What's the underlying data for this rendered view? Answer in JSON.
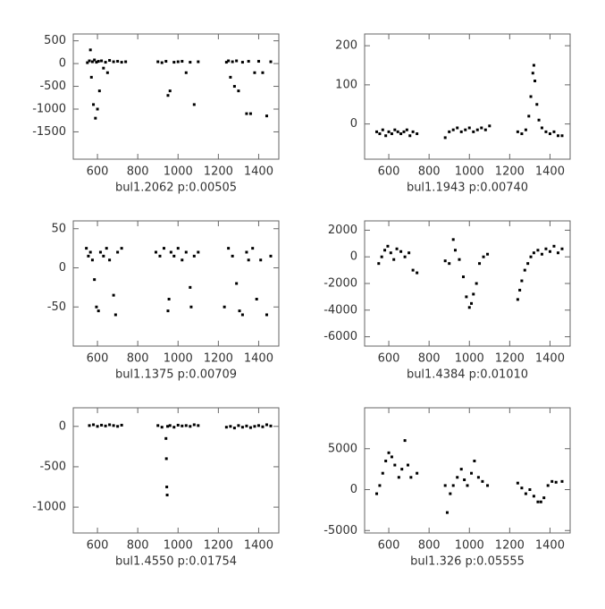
{
  "chart_data": [
    {
      "type": "scatter",
      "xlabel": "bul1.2062 p:0.00505",
      "color": "#000000",
      "xlim": [
        480,
        1500
      ],
      "ylim": [
        -2100,
        650
      ],
      "xticks": [
        600,
        800,
        1000,
        1200,
        1400
      ],
      "yticks": [
        500,
        0,
        -500,
        -1000,
        -1500
      ],
      "x": [
        550,
        560,
        565,
        570,
        575,
        580,
        585,
        590,
        595,
        600,
        605,
        610,
        620,
        630,
        640,
        650,
        660,
        680,
        700,
        720,
        740,
        900,
        920,
        940,
        950,
        960,
        980,
        1000,
        1020,
        1040,
        1060,
        1080,
        1100,
        1240,
        1250,
        1260,
        1270,
        1280,
        1290,
        1300,
        1320,
        1340,
        1350,
        1360,
        1380,
        1400,
        1420,
        1440,
        1460
      ],
      "y": [
        20,
        60,
        300,
        -300,
        40,
        -900,
        80,
        -1200,
        30,
        -1000,
        50,
        -600,
        60,
        -100,
        30,
        -200,
        70,
        40,
        50,
        30,
        40,
        40,
        20,
        50,
        -700,
        -600,
        30,
        40,
        50,
        -200,
        30,
        -900,
        40,
        30,
        60,
        -300,
        40,
        -500,
        60,
        -600,
        30,
        -1100,
        50,
        -1100,
        -200,
        50,
        -200,
        -1150,
        40
      ]
    },
    {
      "type": "scatter",
      "xlabel": "bul1.1943 p:0.00740",
      "color": "#000000",
      "xlim": [
        480,
        1500
      ],
      "ylim": [
        -90,
        230
      ],
      "xticks": [
        600,
        800,
        1000,
        1200,
        1400
      ],
      "yticks": [
        200,
        100,
        0
      ],
      "x": [
        540,
        555,
        570,
        585,
        600,
        615,
        630,
        645,
        660,
        675,
        690,
        705,
        720,
        740,
        880,
        900,
        920,
        940,
        960,
        980,
        1000,
        1020,
        1040,
        1060,
        1080,
        1100,
        1240,
        1260,
        1280,
        1295,
        1305,
        1315,
        1320,
        1325,
        1335,
        1345,
        1360,
        1380,
        1400,
        1420,
        1440,
        1460
      ],
      "y": [
        -20,
        -25,
        -15,
        -30,
        -20,
        -25,
        -15,
        -20,
        -25,
        -20,
        -15,
        -30,
        -20,
        -25,
        -35,
        -20,
        -15,
        -10,
        -20,
        -15,
        -10,
        -20,
        -15,
        -10,
        -15,
        -5,
        -20,
        -25,
        -15,
        20,
        70,
        130,
        150,
        110,
        50,
        10,
        -10,
        -20,
        -25,
        -20,
        -30,
        -30
      ]
    },
    {
      "type": "scatter",
      "xlabel": "bul1.1375 p:0.00709",
      "color": "#000000",
      "xlim": [
        480,
        1500
      ],
      "ylim": [
        -100,
        60
      ],
      "xticks": [
        600,
        800,
        1000,
        1200,
        1400
      ],
      "yticks": [
        50,
        0,
        -50
      ],
      "x": [
        545,
        555,
        565,
        575,
        585,
        595,
        605,
        615,
        630,
        645,
        660,
        680,
        690,
        700,
        720,
        890,
        910,
        930,
        950,
        955,
        965,
        980,
        1000,
        1020,
        1040,
        1060,
        1065,
        1080,
        1100,
        1230,
        1250,
        1270,
        1290,
        1305,
        1320,
        1340,
        1350,
        1370,
        1390,
        1410,
        1440,
        1460
      ],
      "y": [
        25,
        15,
        20,
        10,
        -15,
        -50,
        -55,
        20,
        15,
        25,
        10,
        -35,
        -60,
        20,
        25,
        20,
        15,
        25,
        -55,
        -40,
        20,
        15,
        25,
        10,
        20,
        -25,
        -50,
        15,
        20,
        -50,
        25,
        15,
        -20,
        -55,
        -60,
        20,
        10,
        25,
        -40,
        10,
        -60,
        15
      ]
    },
    {
      "type": "scatter",
      "xlabel": "bul1.4384 p:0.01010",
      "color": "#000000",
      "xlim": [
        480,
        1500
      ],
      "ylim": [
        -6700,
        2700
      ],
      "xticks": [
        600,
        800,
        1000,
        1200,
        1400
      ],
      "yticks": [
        2000,
        0,
        -2000,
        -4000,
        -6000
      ],
      "x": [
        550,
        565,
        580,
        595,
        610,
        625,
        640,
        660,
        680,
        700,
        720,
        740,
        880,
        900,
        920,
        930,
        950,
        970,
        985,
        1000,
        1010,
        1020,
        1035,
        1050,
        1070,
        1090,
        1240,
        1250,
        1260,
        1275,
        1290,
        1305,
        1320,
        1340,
        1360,
        1380,
        1400,
        1420,
        1440,
        1460
      ],
      "y": [
        -500,
        0,
        500,
        800,
        300,
        -200,
        600,
        400,
        0,
        300,
        -1000,
        -1200,
        -300,
        -500,
        1300,
        500,
        -200,
        -1500,
        -3000,
        -3800,
        -3500,
        -2800,
        -2000,
        -500,
        0,
        200,
        -3200,
        -2500,
        -1800,
        -1000,
        -500,
        0,
        300,
        500,
        200,
        600,
        400,
        800,
        300,
        600
      ]
    },
    {
      "type": "scatter",
      "xlabel": "bul1.4550 p:0.01754",
      "color": "#000000",
      "xlim": [
        480,
        1500
      ],
      "ylim": [
        -1320,
        230
      ],
      "xticks": [
        600,
        800,
        1000,
        1200,
        1400
      ],
      "yticks": [
        0,
        -500,
        -1000
      ],
      "x": [
        560,
        580,
        600,
        620,
        640,
        660,
        680,
        700,
        720,
        900,
        920,
        940,
        942,
        944,
        946,
        948,
        960,
        980,
        1000,
        1020,
        1040,
        1060,
        1080,
        1100,
        1240,
        1260,
        1280,
        1300,
        1320,
        1340,
        1360,
        1380,
        1400,
        1420,
        1440,
        1460
      ],
      "y": [
        10,
        20,
        0,
        15,
        5,
        20,
        10,
        0,
        15,
        10,
        -10,
        -150,
        -400,
        -750,
        -850,
        0,
        10,
        -10,
        15,
        5,
        10,
        0,
        20,
        10,
        -10,
        0,
        -20,
        10,
        -10,
        5,
        -15,
        0,
        10,
        -5,
        20,
        5
      ]
    },
    {
      "type": "scatter",
      "xlabel": "bul1.326 p:0.05555",
      "color": "#000000",
      "xlim": [
        480,
        1500
      ],
      "ylim": [
        -5300,
        10000
      ],
      "xticks": [
        600,
        800,
        1000,
        1200,
        1400
      ],
      "yticks": [
        5000,
        0,
        -5000
      ],
      "x": [
        540,
        555,
        570,
        585,
        600,
        615,
        630,
        650,
        665,
        680,
        695,
        710,
        740,
        880,
        890,
        905,
        920,
        940,
        960,
        975,
        990,
        1010,
        1025,
        1045,
        1065,
        1090,
        1240,
        1260,
        1280,
        1300,
        1320,
        1340,
        1355,
        1370,
        1390,
        1410,
        1430,
        1460
      ],
      "y": [
        -500,
        500,
        2000,
        3500,
        4500,
        4000,
        3000,
        1500,
        2500,
        6000,
        3000,
        1500,
        2000,
        500,
        -2800,
        -500,
        500,
        1500,
        2500,
        1200,
        500,
        2000,
        3500,
        1500,
        1000,
        500,
        800,
        200,
        -500,
        0,
        -800,
        -1500,
        -1500,
        -1000,
        500,
        1000,
        900,
        1000
      ]
    }
  ]
}
